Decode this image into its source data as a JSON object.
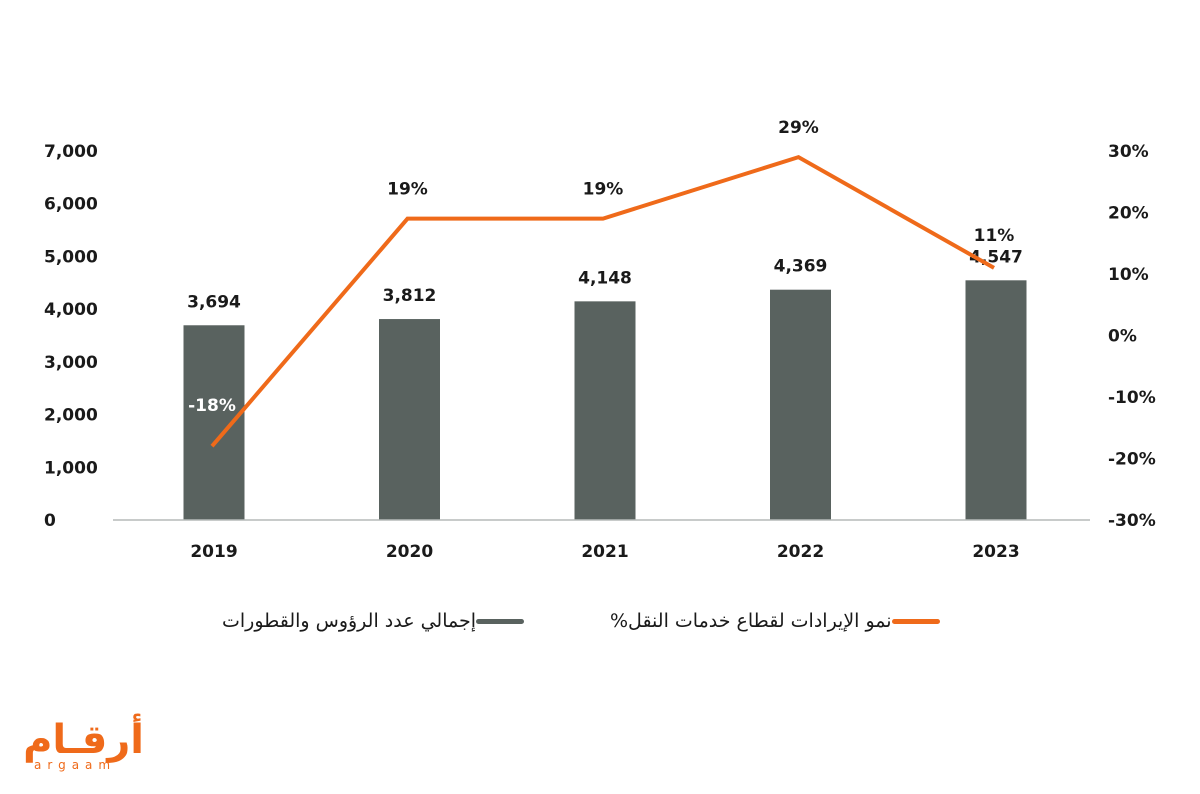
{
  "chart_data": {
    "type": "bar+line",
    "categories": [
      "2019",
      "2020",
      "2021",
      "2022",
      "2023"
    ],
    "series": [
      {
        "name": "إجمالي عدد الرؤوس والقطورات",
        "type": "bar",
        "axis": "left",
        "values": [
          3694,
          3812,
          4148,
          4369,
          4547
        ],
        "labels": [
          "3,694",
          "3,812",
          "4,148",
          "4,369",
          "4,547"
        ],
        "color": "#59625f"
      },
      {
        "name": "نمو الإيرادات لقطاع خدمات النقل%",
        "type": "line",
        "axis": "right",
        "values": [
          -18,
          19,
          19,
          29,
          11
        ],
        "labels": [
          "-18%",
          "19%",
          "19%",
          "29%",
          "11%"
        ],
        "color": "#ef6a1a"
      }
    ],
    "left_axis": {
      "ylim": [
        0,
        7000
      ],
      "ticks": [
        0,
        1000,
        2000,
        3000,
        4000,
        5000,
        6000,
        7000
      ],
      "tick_labels": [
        "0",
        "1,000",
        "2,000",
        "3,000",
        "4,000",
        "5,000",
        "6,000",
        "7,000"
      ]
    },
    "right_axis": {
      "ylim": [
        -30,
        30
      ],
      "ticks": [
        -30,
        -20,
        -10,
        0,
        10,
        20,
        30
      ],
      "tick_labels": [
        "-30%",
        "-20%",
        "-10%",
        "0%",
        "10%",
        "20%",
        "30%"
      ]
    },
    "grid": false,
    "legend_position": "bottom"
  },
  "logo": {
    "arabic": "أرقـام",
    "latin": "argaam"
  }
}
